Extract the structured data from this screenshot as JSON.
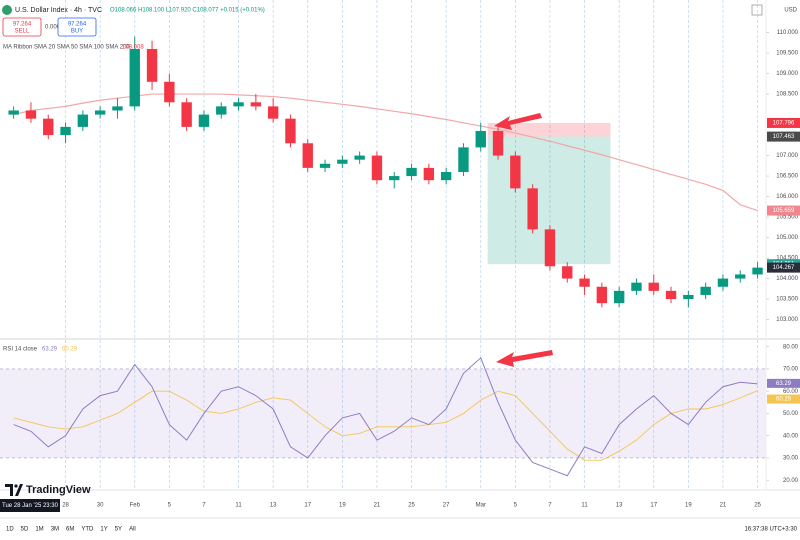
{
  "header": {
    "title": "U.S. Dollar Index · 4h · TVC",
    "ohlc": "O108.066 H108.100 L107.920 C108.077 +0.015 (+0.01%)",
    "sell_price": "97.264",
    "sell": "SELL",
    "spread": "0.000",
    "buy_price": "97.264",
    "buy": "BUY",
    "currency": "USD",
    "indicator": "MA Ribbon SMA 20 SMA 50 SMA 100 SMA 200",
    "indicator_value": "108.008"
  },
  "chart_data": [
    {
      "type": "candlestick",
      "categories": [
        null,
        null,
        null,
        "28",
        null,
        "30",
        null,
        "Feb",
        null,
        "5",
        null,
        "7",
        null,
        "11",
        null,
        "13",
        null,
        "17",
        null,
        "19",
        null,
        "21",
        null,
        "25",
        null,
        "27",
        null,
        "Mar",
        null,
        "5",
        null,
        "7",
        null,
        "11",
        null,
        "13",
        null,
        "17",
        null,
        "19",
        null,
        "21",
        null,
        "25"
      ],
      "open": [
        108.0,
        108.1,
        107.9,
        107.5,
        107.7,
        108.0,
        108.1,
        108.2,
        109.6,
        108.8,
        108.3,
        107.7,
        108.0,
        108.2,
        108.3,
        108.2,
        107.9,
        107.3,
        106.7,
        106.8,
        106.9,
        107.0,
        106.4,
        106.5,
        106.7,
        106.4,
        106.6,
        107.2,
        107.6,
        107.0,
        106.2,
        105.2,
        104.3,
        104.0,
        103.8,
        103.4,
        103.7,
        103.9,
        103.7,
        103.5,
        103.6,
        103.8,
        104.0,
        104.1
      ],
      "high": [
        108.2,
        108.3,
        108.0,
        107.8,
        108.1,
        108.2,
        108.4,
        109.9,
        109.8,
        109.0,
        108.4,
        108.1,
        108.3,
        108.4,
        108.5,
        108.4,
        108.0,
        107.4,
        106.9,
        107.0,
        107.1,
        107.1,
        106.6,
        106.8,
        106.8,
        106.7,
        107.3,
        107.8,
        107.7,
        107.1,
        106.3,
        105.3,
        104.4,
        104.1,
        103.9,
        103.8,
        104.0,
        104.1,
        103.8,
        103.7,
        103.9,
        104.1,
        104.2,
        104.4
      ],
      "low": [
        107.9,
        107.8,
        107.4,
        107.3,
        107.6,
        107.9,
        107.9,
        108.1,
        108.6,
        108.2,
        107.6,
        107.6,
        107.9,
        108.1,
        108.1,
        107.8,
        107.2,
        106.6,
        106.6,
        106.7,
        106.8,
        106.3,
        106.2,
        106.4,
        106.3,
        106.3,
        106.5,
        107.1,
        106.9,
        106.1,
        105.1,
        104.2,
        103.9,
        103.6,
        103.3,
        103.3,
        103.6,
        103.6,
        103.4,
        103.3,
        103.5,
        103.7,
        103.9,
        104.0
      ],
      "close": [
        108.1,
        107.9,
        107.5,
        107.7,
        108.0,
        108.1,
        108.2,
        109.6,
        108.8,
        108.3,
        107.7,
        108.0,
        108.2,
        108.3,
        108.2,
        107.9,
        107.3,
        106.7,
        106.8,
        106.9,
        107.0,
        106.4,
        106.5,
        106.7,
        106.4,
        106.6,
        107.2,
        107.6,
        107.0,
        106.2,
        105.2,
        104.3,
        104.0,
        103.8,
        103.4,
        103.7,
        103.9,
        103.7,
        103.5,
        103.6,
        103.8,
        104.0,
        104.1,
        104.267
      ],
      "colors": {
        "up": "#089981",
        "down": "#f23645"
      },
      "overlay": {
        "color": "#f2a7a7",
        "values": [
          108.0,
          108.1,
          108.15,
          108.2,
          108.28,
          108.35,
          108.4,
          108.45,
          108.5,
          108.5,
          108.5,
          108.5,
          108.5,
          108.48,
          108.46,
          108.44,
          108.4,
          108.35,
          108.3,
          108.25,
          108.2,
          108.14,
          108.08,
          108.02,
          107.95,
          107.88,
          107.8,
          107.72,
          107.64,
          107.55,
          107.45,
          107.35,
          107.24,
          107.13,
          107.02,
          106.9,
          106.78,
          106.66,
          106.54,
          106.42,
          106.3,
          106.15,
          105.8,
          105.659
        ]
      },
      "position": {
        "stop": 107.796,
        "entry": 107.463,
        "target": 104.351
      },
      "ylim": [
        102.55,
        110.6
      ],
      "yticks": [
        {
          "value": 103,
          "label": "103.000"
        },
        {
          "value": 103.5,
          "label": "103.500"
        },
        {
          "value": 104,
          "label": "104.000"
        },
        {
          "value": 104.5,
          "label": "104.500"
        },
        {
          "value": 105,
          "label": "105.000"
        },
        {
          "value": 105.5,
          "label": "105.500"
        },
        {
          "value": 106,
          "label": "106.000"
        },
        {
          "value": 106.5,
          "label": "106.500"
        },
        {
          "value": 107,
          "label": "107.000"
        },
        {
          "value": 108.5,
          "label": "108.500"
        },
        {
          "value": 109,
          "label": "109.000"
        },
        {
          "value": 109.5,
          "label": "109.500"
        },
        {
          "value": 110,
          "label": "110.000"
        }
      ],
      "grid": "vertical"
    },
    {
      "type": "line",
      "title": "RSI 14 close",
      "series": [
        {
          "color": "#8e7cc3",
          "values": [
            45,
            42,
            35,
            40,
            52,
            58,
            60,
            72,
            62,
            45,
            38,
            50,
            60,
            62,
            58,
            52,
            35,
            30,
            40,
            48,
            50,
            38,
            42,
            48,
            45,
            52,
            68,
            75,
            55,
            38,
            28,
            25,
            22,
            35,
            32,
            45,
            52,
            58,
            50,
            45,
            55,
            62,
            64,
            63.29
          ]
        },
        {
          "color": "#f5c451",
          "values": [
            48,
            46,
            44,
            43,
            44,
            47,
            50,
            55,
            60,
            60,
            56,
            51,
            50,
            52,
            55,
            57,
            56,
            50,
            44,
            40,
            41,
            44,
            44,
            44,
            45,
            46,
            50,
            56,
            60,
            58,
            50,
            42,
            34,
            29,
            29,
            33,
            38,
            45,
            50,
            52,
            52,
            54,
            57,
            60.29
          ]
        }
      ],
      "band": [
        30,
        70
      ],
      "ylim": [
        16.5,
        83
      ],
      "yticks": [
        {
          "value": 20,
          "label": "20.00"
        },
        {
          "value": 30,
          "label": "30.00"
        },
        {
          "value": 40,
          "label": "40.00"
        },
        {
          "value": 50,
          "label": "50.00"
        },
        {
          "value": 60,
          "label": "60.00"
        },
        {
          "value": 70,
          "label": "70.00"
        },
        {
          "value": 80,
          "label": "80.00"
        }
      ]
    }
  ],
  "crosshair_label": "Tue 28 Jan '25 23:30",
  "watermark": "TradingView",
  "footer": {
    "ranges": [
      "1D",
      "5D",
      "1M",
      "3M",
      "6M",
      "YTD",
      "1Y",
      "5Y",
      "All"
    ],
    "clock": "16:37:38 UTC+3:30"
  }
}
